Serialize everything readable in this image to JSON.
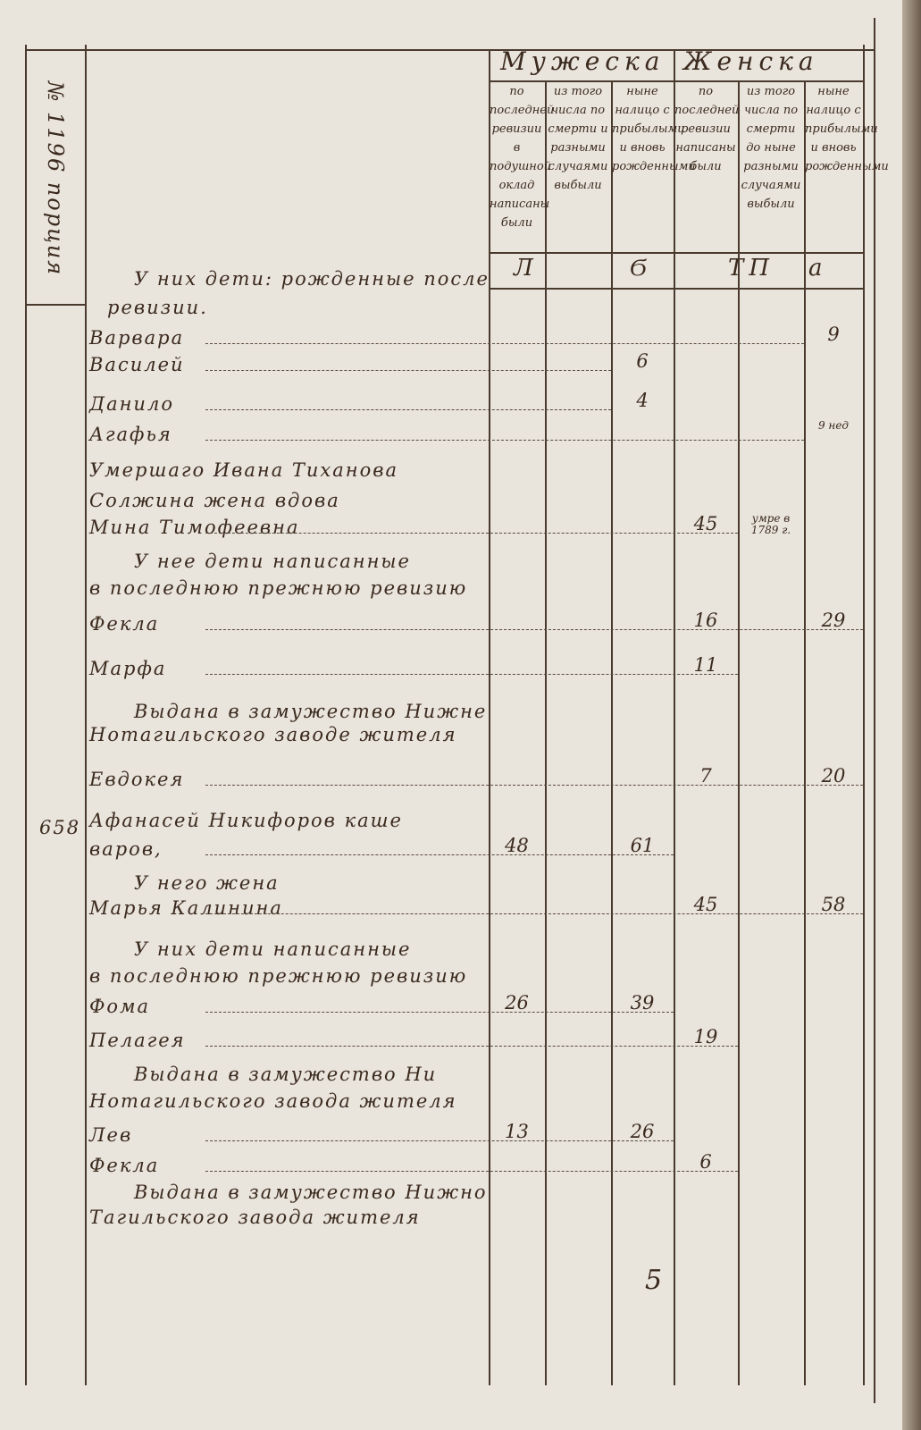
{
  "side_label": "№ 1196 порция",
  "header": {
    "male": "Мужеска",
    "female": "Женска",
    "columns": [
      "по последней ревизии в подушной оклад написаны были",
      "из того числа по смерти и разными случаями выбыли",
      "ныне налицо с прибылыми и вновь рожденными",
      "по последней ревизии написаны были",
      "из того числа по смерти до ныне разными случаями выбыли",
      "ныне налицо с прибылыми и вновь рожденными"
    ],
    "letters": [
      "Л",
      "Ϭ",
      "ТП",
      "а"
    ]
  },
  "entries": [
    {
      "text": "У них дети: рожденные после",
      "values": [
        "",
        "",
        "",
        "",
        "",
        ""
      ]
    },
    {
      "text": "ревизии.",
      "values": [
        "",
        "",
        "",
        "",
        "",
        ""
      ]
    },
    {
      "text": "Варвара",
      "values": [
        "",
        "",
        "",
        "",
        "",
        "9"
      ]
    },
    {
      "text": "Василей",
      "values": [
        "",
        "",
        "6",
        "",
        "",
        ""
      ]
    },
    {
      "text": "Данило",
      "values": [
        "",
        "",
        "4",
        "",
        "",
        ""
      ]
    },
    {
      "text": "Агафья",
      "values": [
        "",
        "",
        "",
        "",
        "",
        "9 нед"
      ]
    },
    {
      "text": "Умершаго Ивана Тиханова",
      "values": [
        "",
        "",
        "",
        "",
        "",
        ""
      ]
    },
    {
      "text": "Солжина жена вдова",
      "values": [
        "",
        "",
        "",
        "",
        "",
        ""
      ]
    },
    {
      "text": "Мина Тимофеевна",
      "values": [
        "",
        "",
        "",
        "45",
        "умре в 1789 г.",
        ""
      ]
    },
    {
      "text": "У нее дети написанные",
      "values": [
        "",
        "",
        "",
        "",
        "",
        ""
      ]
    },
    {
      "text": "в последнюю прежнюю ревизию",
      "values": [
        "",
        "",
        "",
        "",
        "",
        ""
      ]
    },
    {
      "text": "Фекла",
      "values": [
        "",
        "",
        "",
        "16",
        "",
        "29"
      ]
    },
    {
      "text": "Марфа",
      "values": [
        "",
        "",
        "",
        "11",
        "",
        ""
      ]
    },
    {
      "text": "Выдана в замужество Нижне",
      "values": [
        "",
        "",
        "",
        "",
        "",
        ""
      ]
    },
    {
      "text": "Нотагильского заводе жителя",
      "values": [
        "",
        "",
        "",
        "",
        "",
        ""
      ]
    },
    {
      "text": "Евдокея",
      "values": [
        "",
        "",
        "",
        "7",
        "",
        "20"
      ]
    },
    {
      "text": "Афанасей Никифоров каше",
      "number": "658",
      "values": [
        "",
        "",
        "",
        "",
        "",
        ""
      ]
    },
    {
      "text": "варов,",
      "values": [
        "48",
        "",
        "61",
        "",
        "",
        ""
      ]
    },
    {
      "text": "У него жена",
      "values": [
        "",
        "",
        "",
        "",
        "",
        ""
      ]
    },
    {
      "text": "Марья Калинина",
      "values": [
        "",
        "",
        "",
        "45",
        "",
        "58"
      ]
    },
    {
      "text": "У них дети написанные",
      "values": [
        "",
        "",
        "",
        "",
        "",
        ""
      ]
    },
    {
      "text": "в последнюю прежнюю ревизию",
      "values": [
        "",
        "",
        "",
        "",
        "",
        ""
      ]
    },
    {
      "text": "Фома",
      "values": [
        "26",
        "",
        "39",
        "",
        "",
        ""
      ]
    },
    {
      "text": "Пелагея",
      "values": [
        "",
        "",
        "",
        "19",
        "",
        ""
      ]
    },
    {
      "text": "Выдана в замужество Ни",
      "values": [
        "",
        "",
        "",
        "",
        "",
        ""
      ]
    },
    {
      "text": "Нотагильского завода жителя",
      "values": [
        "",
        "",
        "",
        "",
        "",
        ""
      ]
    },
    {
      "text": "Лев",
      "values": [
        "13",
        "",
        "26",
        "",
        "",
        ""
      ]
    },
    {
      "text": "Фекла",
      "values": [
        "",
        "",
        "",
        "6",
        "",
        ""
      ]
    },
    {
      "text": "Выдана в замужество Нижно",
      "values": [
        "",
        "",
        "",
        "",
        "",
        ""
      ]
    },
    {
      "text": "Тагильского завода жителя",
      "values": [
        "",
        "",
        "",
        "",
        "",
        ""
      ]
    }
  ],
  "page_number": "5",
  "colors": {
    "paper": "#e9e4dc",
    "ink": "#3b2a1e"
  }
}
